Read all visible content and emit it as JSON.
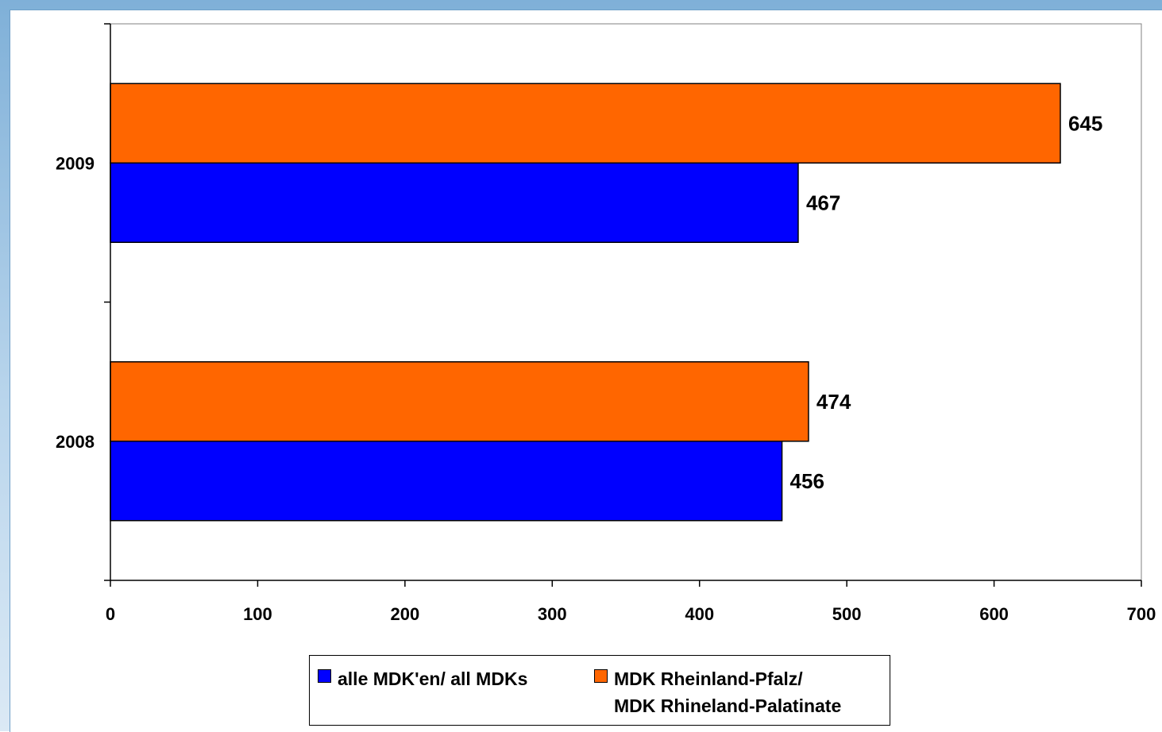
{
  "chart_data": {
    "type": "bar",
    "orientation": "horizontal",
    "categories": [
      "2008",
      "2009"
    ],
    "series": [
      {
        "name": "alle MDK'en/ all MDKs",
        "color": "#0000ff",
        "values": [
          456,
          467
        ]
      },
      {
        "name": "MDK Rheinland-Pfalz/ MDK Rhineland-Palatinate",
        "color": "#ff6600",
        "values": [
          474,
          645
        ]
      }
    ],
    "xlim": [
      0,
      700
    ],
    "xticks": [
      0,
      100,
      200,
      300,
      400,
      500,
      600,
      700
    ],
    "grid": false,
    "legend_position": "bottom",
    "title": "",
    "xlabel": "",
    "ylabel": ""
  },
  "legend": {
    "series1_label": "alle MDK'en/ all MDKs",
    "series2_line1": "MDK Rheinland-Pfalz/",
    "series2_line2": "MDK Rhineland-Palatinate"
  }
}
